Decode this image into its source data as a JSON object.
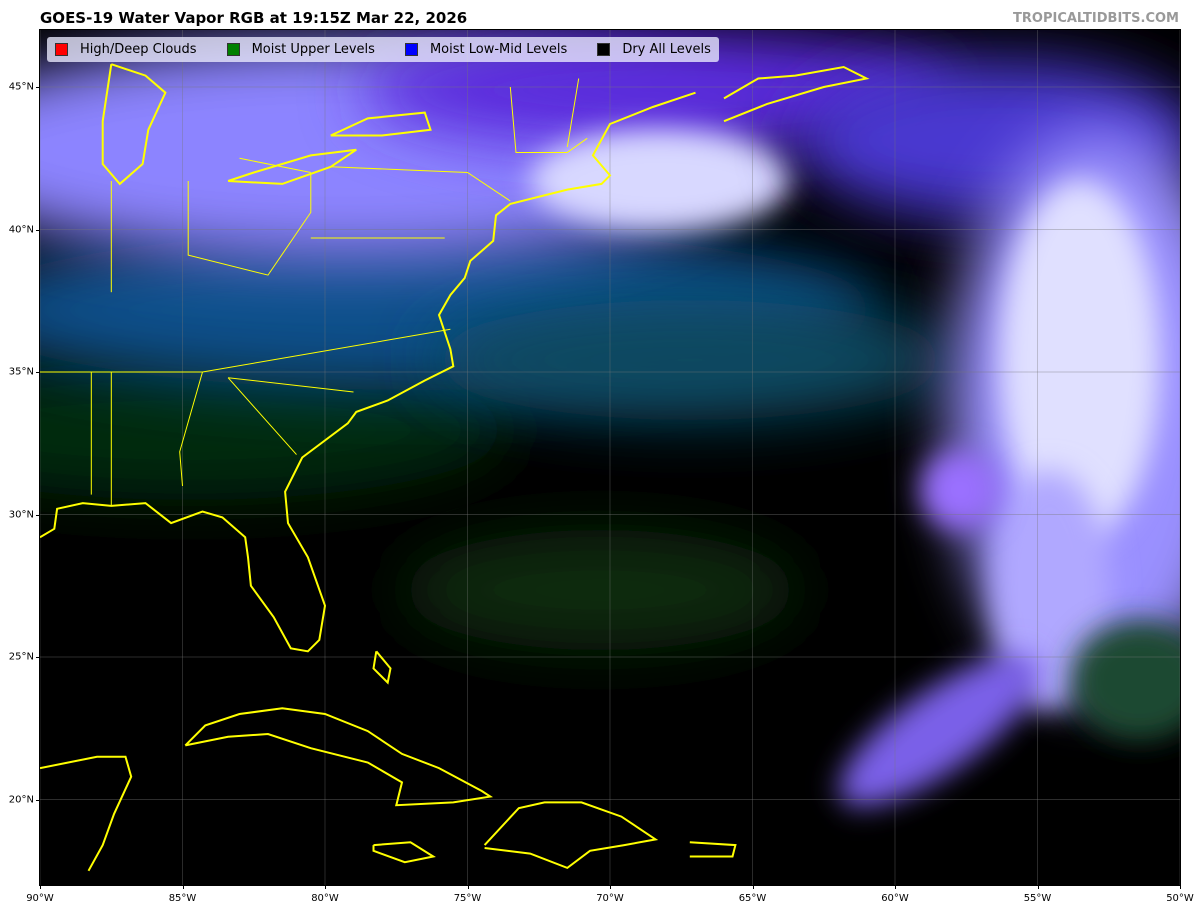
{
  "title": "GOES-19 Water Vapor RGB at 19:15Z Mar 22, 2026",
  "credit": "TROPICALTIDBITS.COM",
  "legend": [
    {
      "label": "High/Deep Clouds",
      "color": "#ff0000"
    },
    {
      "label": "Moist Upper Levels",
      "color": "#008000"
    },
    {
      "label": "Moist Low-Mid Levels",
      "color": "#0000ff"
    },
    {
      "label": "Dry All Levels",
      "color": "#000000"
    }
  ],
  "axes": {
    "lon_range": [
      -90,
      -50
    ],
    "lat_range": [
      17,
      47
    ],
    "x_ticks": [
      "90°W",
      "85°W",
      "80°W",
      "75°W",
      "70°W",
      "65°W",
      "60°W",
      "55°W",
      "50°W"
    ],
    "y_ticks": [
      "45°N",
      "40°N",
      "35°N",
      "30°N",
      "25°N",
      "20°N"
    ],
    "gridlines": true
  },
  "colors": {
    "coastline": "#ffff00",
    "background": "#000000"
  }
}
